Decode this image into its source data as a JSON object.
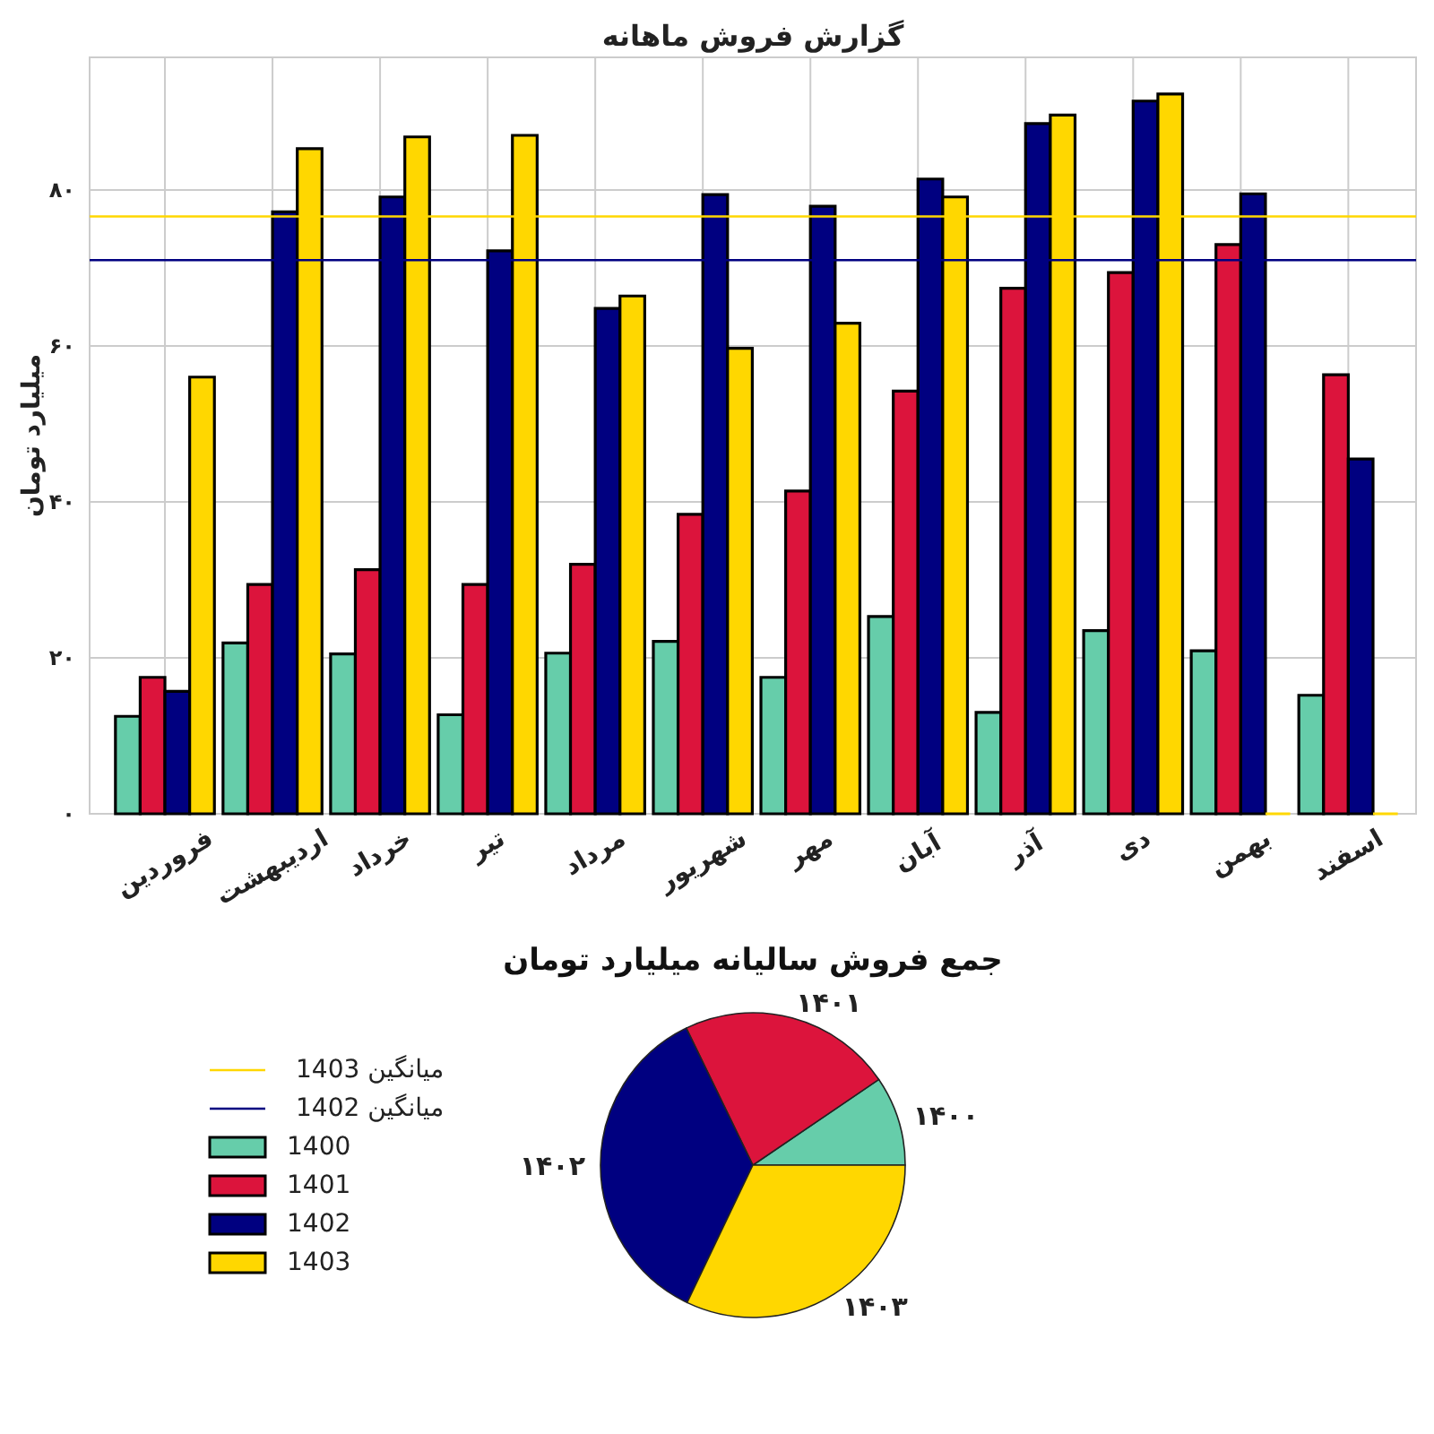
{
  "chart_data": [
    {
      "type": "bar",
      "title": "گزارش فروش ماهانه",
      "ylabel": "میلیارد تومان",
      "categories": [
        "فروردین",
        "اردیبهشت",
        "خرداد",
        "تیر",
        "مرداد",
        "شهریور",
        "مهر",
        "آبان",
        "آذر",
        "دی",
        "بهمن",
        "اسفند"
      ],
      "series": [
        {
          "name": "1400",
          "color": "#66cdaa",
          "values": [
            12.5,
            21.9,
            20.5,
            12.7,
            20.6,
            22.1,
            17.5,
            25.3,
            13.0,
            23.5,
            20.9,
            15.2
          ]
        },
        {
          "name": "1401",
          "color": "#dc143c",
          "values": [
            17.5,
            29.4,
            31.3,
            29.4,
            32.0,
            38.4,
            41.4,
            54.2,
            67.4,
            69.4,
            73.0,
            56.3
          ]
        },
        {
          "name": "1402",
          "color": "#000080",
          "values": [
            15.7,
            77.2,
            79.1,
            72.2,
            64.8,
            79.4,
            77.9,
            81.4,
            88.5,
            91.4,
            79.5,
            45.5
          ]
        },
        {
          "name": "1403",
          "color": "#ffd700",
          "values": [
            56.0,
            85.3,
            86.8,
            87.0,
            66.4,
            59.7,
            62.9,
            79.1,
            89.6,
            92.3,
            0,
            0
          ]
        }
      ],
      "ylim": [
        0,
        97
      ],
      "yticks": [
        {
          "value": 0,
          "label": "۰"
        },
        {
          "value": 20,
          "label": "۲۰"
        },
        {
          "value": 40,
          "label": "۴۰"
        },
        {
          "value": 60,
          "label": "۶۰"
        },
        {
          "value": 80,
          "label": "۸۰"
        }
      ],
      "ref_lines": [
        {
          "axis": "y",
          "value": 76.6,
          "label": "میانگین 1403",
          "color": "#ffd700"
        },
        {
          "axis": "y",
          "value": 71.0,
          "label": "میانگین 1402",
          "color": "#000080"
        }
      ],
      "grid": true,
      "legend": "bottom left"
    },
    {
      "type": "pie",
      "title": "جمع فروش سالیانه میلیارد تومان",
      "categories": [
        "۱۴۰۰",
        "۱۴۰۱",
        "۱۴۰۲",
        "۱۴۰۳"
      ],
      "values": [
        9.5,
        22.7,
        35.7,
        32.1
      ],
      "colors": [
        "#66cdaa",
        "#dc143c",
        "#000080",
        "#ffd700"
      ]
    }
  ]
}
